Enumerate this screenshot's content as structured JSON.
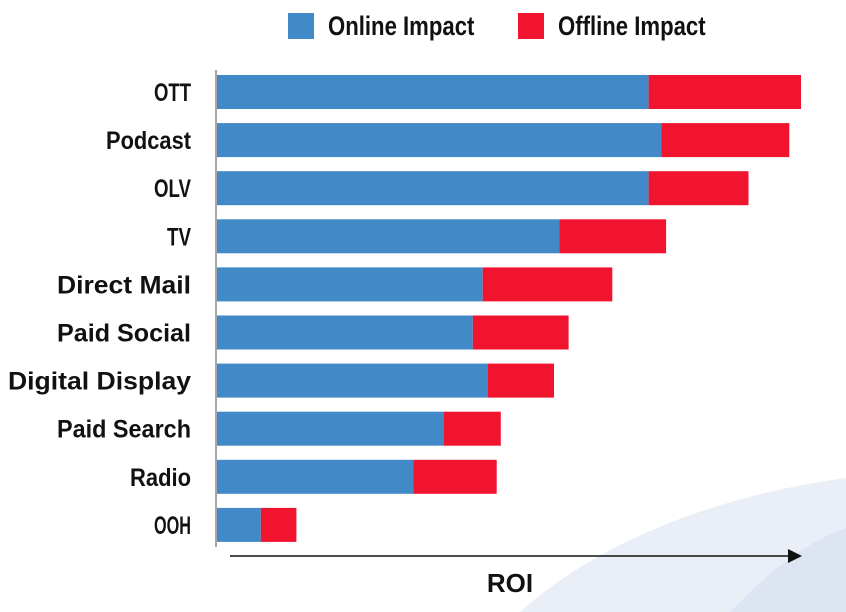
{
  "chart_data": {
    "type": "bar",
    "orientation": "horizontal",
    "stacked": true,
    "title": "",
    "xlabel": "ROI",
    "ylabel": "",
    "xlim": [
      0,
      100
    ],
    "categories": [
      "OTT",
      "Podcast",
      "OLV",
      "TV",
      "Direct Mail",
      "Paid Social",
      "Digital Display",
      "Paid Search",
      "Radio",
      "OOH"
    ],
    "series": [
      {
        "name": "Online Impact",
        "color": "#4189C7",
        "values": [
          73.9,
          76.1,
          73.9,
          58.6,
          45.5,
          43.8,
          46.4,
          38.8,
          33.6,
          7.5
        ]
      },
      {
        "name": "Offline Impact",
        "color": "#F0142F",
        "values": [
          26.1,
          21.9,
          17.1,
          18.3,
          22.2,
          16.4,
          11.3,
          9.8,
          14.3,
          6.1
        ]
      }
    ],
    "legend_position": "top",
    "grid": false
  },
  "legend": {
    "items": [
      {
        "label": "Online Impact",
        "color": "#4189C7"
      },
      {
        "label": "Offline Impact",
        "color": "#F0142F"
      }
    ]
  },
  "decor": {
    "swoosh_color": "#E9EEF7",
    "axis_color": "#111111"
  }
}
